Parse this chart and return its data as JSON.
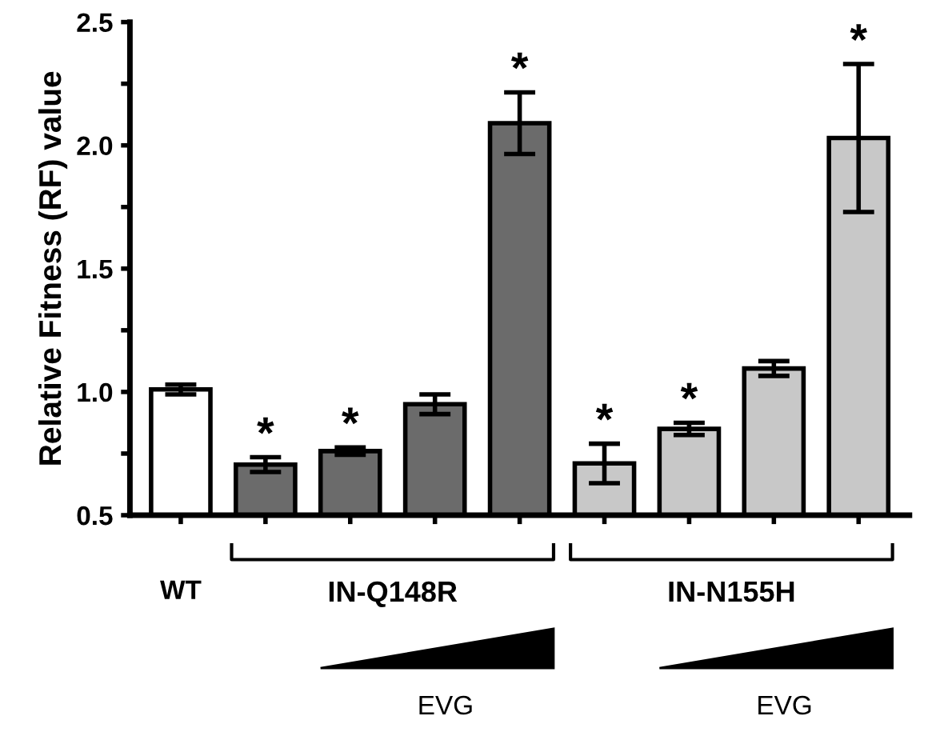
{
  "chart_data": {
    "type": "bar",
    "ylabel": "Relative Fitness (RF) value",
    "categories": [
      "WT",
      null,
      null,
      null,
      null,
      null,
      null,
      null,
      null
    ],
    "values": [
      1.01,
      0.705,
      0.76,
      0.95,
      2.09,
      0.71,
      0.85,
      1.095,
      2.03
    ],
    "errors": [
      0.02,
      0.03,
      0.015,
      0.04,
      0.125,
      0.08,
      0.025,
      0.03,
      0.3
    ],
    "colors": [
      "#ffffff",
      "#6b6b6b",
      "#6b6b6b",
      "#6b6b6b",
      "#6b6b6b",
      "#c8c8c8",
      "#c8c8c8",
      "#c8c8c8",
      "#c8c8c8"
    ],
    "value_labels": [
      null,
      "*",
      "*",
      null,
      "*",
      "*",
      "*",
      null,
      "*"
    ],
    "ylim": [
      0.5,
      2.5
    ],
    "yticks": [
      0.5,
      {
        "value": 0.75,
        "label": null
      },
      "1.0",
      {
        "value": 1.25,
        "label": null
      },
      1.5,
      {
        "value": 1.75,
        "label": null
      },
      "2.0",
      {
        "value": 2.25,
        "label": null
      },
      2.5
    ],
    "annotations": [
      "IN-Q148R",
      "IN-N155H",
      "EVG",
      "EVG"
    ],
    "grid": false,
    "legend": false
  }
}
